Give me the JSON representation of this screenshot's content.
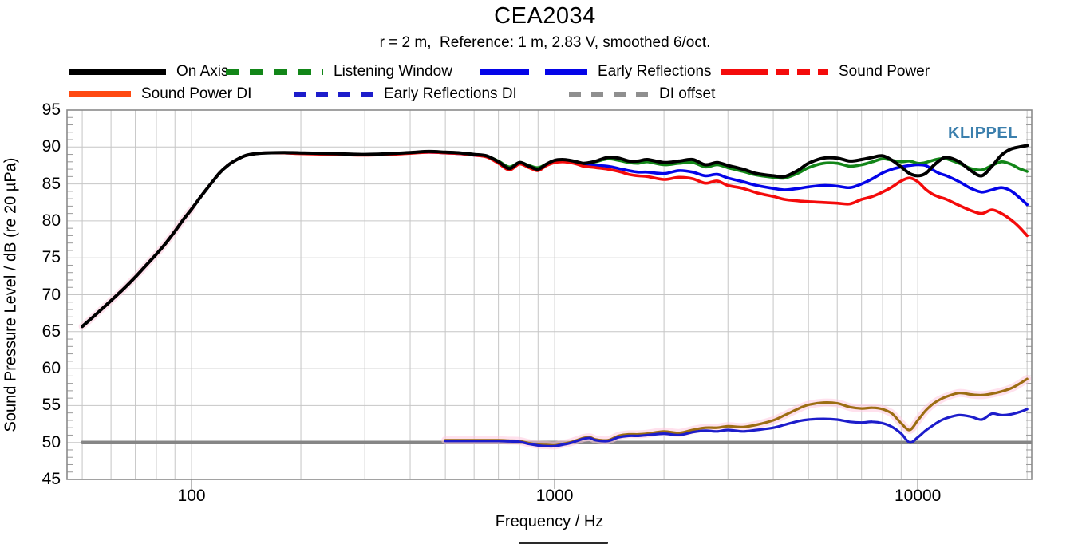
{
  "title": "CEA2034",
  "subtitle": "r = 2 m,  Reference: 1 m, 2.83 V, smoothed 6/oct.",
  "watermark": {
    "text": "KLIPPEL",
    "color": "#3b7fad"
  },
  "legend": {
    "rows": [
      [
        {
          "label": "On Axis",
          "color": "#000000",
          "style": "solid",
          "swatch_w": 122
        },
        {
          "label": "Listening Window",
          "color": "#128618",
          "style": "dash",
          "swatch_w": 122
        },
        {
          "label": "Early Reflections",
          "color": "#0404e8",
          "style": "longdash",
          "swatch_w": 135
        },
        {
          "label": "Sound Power",
          "color": "#f40b0b",
          "style": "dashdotdot",
          "swatch_w": 135
        }
      ],
      [
        {
          "label": "Sound Power DI",
          "color": "#ff4a12",
          "style": "solid",
          "swatch_w": 78
        },
        {
          "label": "Early Reflections DI",
          "color": "#1d1dcb",
          "style": "squaredash",
          "swatch_w": 100
        },
        {
          "label": "DI offset",
          "color": "#8f8f8f",
          "style": "squaredash",
          "swatch_w": 100
        }
      ]
    ]
  },
  "chart_data": {
    "type": "line",
    "title": "CEA2034",
    "subtitle": "r = 2 m,  Reference: 1 m, 2.83 V, smoothed 6/oct.",
    "xlabel": "Frequency / Hz",
    "ylabel": "Sound Pressure Level / dB (re 20 µPa)",
    "x_scale": "log",
    "xlim": [
      45.4,
      20600
    ],
    "ylim": [
      45,
      95
    ],
    "x_major_ticks": [
      100,
      1000,
      10000
    ],
    "x_minor_gridlines": [
      50,
      60,
      70,
      80,
      90,
      200,
      300,
      400,
      500,
      600,
      700,
      800,
      900,
      2000,
      3000,
      4000,
      5000,
      6000,
      7000,
      8000,
      9000,
      20000
    ],
    "y_ticks": [
      45,
      50,
      55,
      60,
      65,
      70,
      75,
      80,
      85,
      90,
      95
    ],
    "grid": true,
    "legend_position": "top",
    "colors": {
      "grid": "#c6c6c6",
      "box": "#8a8a8a",
      "halo": "#ffc9de"
    },
    "freqs_main": [
      50,
      55,
      60,
      65,
      70,
      75,
      80,
      85,
      90,
      95,
      100,
      105,
      110,
      115,
      120,
      125,
      130,
      140,
      150,
      160,
      180,
      200,
      250,
      300,
      350,
      400,
      450,
      500,
      550,
      600,
      650,
      700,
      750,
      800,
      850,
      900,
      950,
      1000,
      1050,
      1100,
      1150,
      1200,
      1250,
      1300,
      1400,
      1500,
      1600,
      1700,
      1800,
      2000,
      2200,
      2400,
      2600,
      2800,
      3000,
      3300,
      3600,
      4000,
      4300,
      4700,
      5000,
      5500,
      6000,
      6500,
      7000,
      7500,
      8000,
      8500,
      9000,
      9500,
      10000,
      10500,
      11000,
      11500,
      12000,
      13000,
      14000,
      15000,
      16000,
      17000,
      18000,
      19000,
      20000
    ],
    "freqs_di": [
      500,
      550,
      600,
      650,
      700,
      750,
      800,
      850,
      900,
      950,
      1000,
      1050,
      1100,
      1150,
      1200,
      1250,
      1300,
      1400,
      1500,
      1600,
      1700,
      1800,
      2000,
      2200,
      2400,
      2600,
      2800,
      3000,
      3300,
      3600,
      4000,
      4300,
      4700,
      5000,
      5500,
      6000,
      6500,
      7000,
      7500,
      8000,
      8500,
      9000,
      9500,
      10000,
      10500,
      11000,
      11500,
      12000,
      13000,
      14000,
      15000,
      16000,
      17000,
      18000,
      19000,
      20000
    ],
    "series": [
      {
        "name": "DI offset",
        "color": "#868686",
        "width": 4.5,
        "freq_key": null,
        "x": [
          50,
          20600
        ],
        "y": [
          50,
          50
        ]
      },
      {
        "name": "Sound Power DI",
        "color": "#9c6d12",
        "width": 3.2,
        "freq_key": "freqs_di",
        "halo": true,
        "y": [
          50.3,
          50.3,
          50.3,
          50.3,
          50.3,
          50.25,
          50.2,
          49.9,
          49.7,
          49.65,
          49.6,
          49.8,
          50.0,
          50.3,
          50.6,
          50.7,
          50.4,
          50.3,
          50.9,
          51.1,
          51.1,
          51.2,
          51.5,
          51.3,
          51.7,
          52.0,
          52.0,
          52.2,
          52.1,
          52.4,
          53.0,
          53.7,
          54.6,
          55.1,
          55.4,
          55.3,
          54.8,
          54.6,
          54.7,
          54.5,
          53.9,
          52.6,
          51.7,
          53.0,
          54.3,
          55.2,
          55.8,
          56.2,
          56.7,
          56.5,
          56.4,
          56.6,
          56.9,
          57.3,
          57.9,
          58.6
        ]
      },
      {
        "name": "Early Reflections DI",
        "color": "#1d1dcb",
        "width": 3.2,
        "freq_key": "freqs_di",
        "y": [
          50.2,
          50.2,
          50.2,
          50.2,
          50.2,
          50.15,
          50.1,
          49.8,
          49.6,
          49.5,
          49.5,
          49.7,
          49.9,
          50.2,
          50.5,
          50.6,
          50.3,
          50.2,
          50.7,
          50.9,
          50.9,
          51.0,
          51.2,
          51.0,
          51.4,
          51.6,
          51.5,
          51.7,
          51.5,
          51.7,
          52.0,
          52.4,
          52.9,
          53.1,
          53.2,
          53.1,
          52.8,
          52.7,
          52.8,
          52.6,
          52.1,
          51.2,
          50.0,
          50.7,
          51.6,
          52.3,
          52.9,
          53.3,
          53.7,
          53.5,
          53.1,
          53.9,
          53.7,
          53.8,
          54.1,
          54.5
        ]
      },
      {
        "name": "Listening Window",
        "color": "#128618",
        "width": 3.6,
        "freq_key": "freqs_main",
        "y": [
          65.7,
          67.5,
          69.2,
          70.8,
          72.4,
          74.0,
          75.5,
          77.0,
          78.6,
          80.2,
          81.6,
          83.0,
          84.3,
          85.5,
          86.6,
          87.4,
          88.0,
          88.8,
          89.1,
          89.2,
          89.2,
          89.15,
          89.05,
          88.95,
          89.05,
          89.2,
          89.35,
          89.25,
          89.15,
          88.95,
          88.75,
          88.1,
          87.3,
          87.9,
          87.5,
          87.2,
          87.7,
          88.1,
          88.2,
          88.1,
          87.9,
          87.7,
          87.8,
          88.0,
          88.4,
          88.2,
          87.9,
          87.8,
          88.0,
          87.6,
          87.8,
          87.9,
          87.3,
          87.6,
          87.2,
          86.7,
          86.2,
          85.9,
          85.8,
          86.5,
          87.2,
          87.8,
          87.8,
          87.4,
          87.6,
          88.0,
          88.4,
          88.2,
          88.0,
          88.1,
          87.8,
          87.9,
          88.2,
          88.4,
          88.4,
          87.8,
          87.1,
          86.9,
          87.5,
          88.0,
          87.7,
          87.1,
          86.7
        ]
      },
      {
        "name": "Early Reflections",
        "color": "#0404e8",
        "width": 3.6,
        "freq_key": "freqs_main",
        "y": [
          65.7,
          67.5,
          69.2,
          70.8,
          72.4,
          74.0,
          75.5,
          77.0,
          78.6,
          80.2,
          81.6,
          83.0,
          84.3,
          85.5,
          86.6,
          87.4,
          88.0,
          88.8,
          89.1,
          89.2,
          89.2,
          89.15,
          89.05,
          88.95,
          89.05,
          89.2,
          89.3,
          89.2,
          89.1,
          88.9,
          88.7,
          87.9,
          87.0,
          87.8,
          87.3,
          86.9,
          87.6,
          88.0,
          88.1,
          88.0,
          87.8,
          87.6,
          87.5,
          87.5,
          87.4,
          87.1,
          86.8,
          86.6,
          86.6,
          86.4,
          86.8,
          86.6,
          86.1,
          86.3,
          85.8,
          85.3,
          84.8,
          84.4,
          84.2,
          84.4,
          84.6,
          84.8,
          84.7,
          84.5,
          85.0,
          85.7,
          86.5,
          87.0,
          87.3,
          87.5,
          87.6,
          87.5,
          86.9,
          86.4,
          86.1,
          85.3,
          84.4,
          83.9,
          84.2,
          84.5,
          84.1,
          83.2,
          82.2
        ]
      },
      {
        "name": "Sound Power",
        "color": "#f40b0b",
        "width": 3.6,
        "freq_key": "freqs_main",
        "halo_max_f": 100,
        "y": [
          65.7,
          67.5,
          69.2,
          70.8,
          72.4,
          74.0,
          75.5,
          77.0,
          78.6,
          80.2,
          81.6,
          83.0,
          84.3,
          85.5,
          86.6,
          87.4,
          88.0,
          88.8,
          89.1,
          89.2,
          89.2,
          89.1,
          89.0,
          88.9,
          89.0,
          89.15,
          89.3,
          89.2,
          89.1,
          88.9,
          88.65,
          87.8,
          86.9,
          87.7,
          87.2,
          86.8,
          87.5,
          87.9,
          88.0,
          87.9,
          87.7,
          87.4,
          87.3,
          87.2,
          87.0,
          86.7,
          86.3,
          86.1,
          86.0,
          85.6,
          85.9,
          85.7,
          85.1,
          85.4,
          84.8,
          84.4,
          83.8,
          83.3,
          82.9,
          82.7,
          82.6,
          82.5,
          82.4,
          82.3,
          82.9,
          83.3,
          83.9,
          84.6,
          85.4,
          85.8,
          85.3,
          84.3,
          83.6,
          83.2,
          82.9,
          82.1,
          81.4,
          81.0,
          81.5,
          81.0,
          80.2,
          79.2,
          78.0
        ]
      },
      {
        "name": "On Axis",
        "color": "#000000",
        "width": 4.0,
        "freq_key": "freqs_main",
        "y": [
          65.7,
          67.5,
          69.2,
          70.8,
          72.4,
          74.0,
          75.5,
          77.0,
          78.6,
          80.2,
          81.6,
          83.0,
          84.3,
          85.5,
          86.6,
          87.4,
          88.0,
          88.8,
          89.1,
          89.2,
          89.25,
          89.2,
          89.1,
          89.0,
          89.1,
          89.25,
          89.4,
          89.3,
          89.2,
          89.0,
          88.8,
          88.0,
          87.1,
          87.9,
          87.4,
          87.0,
          87.7,
          88.2,
          88.3,
          88.2,
          88.0,
          87.8,
          87.9,
          88.1,
          88.6,
          88.5,
          88.1,
          88.1,
          88.3,
          87.9,
          88.1,
          88.3,
          87.6,
          87.9,
          87.5,
          87.0,
          86.4,
          86.1,
          86.0,
          86.9,
          87.8,
          88.5,
          88.5,
          88.1,
          88.3,
          88.6,
          88.8,
          88.2,
          87.3,
          86.4,
          86.1,
          86.4,
          87.4,
          88.2,
          88.6,
          88.0,
          86.8,
          86.1,
          87.4,
          88.9,
          89.7,
          90.0,
          90.2
        ]
      }
    ]
  }
}
